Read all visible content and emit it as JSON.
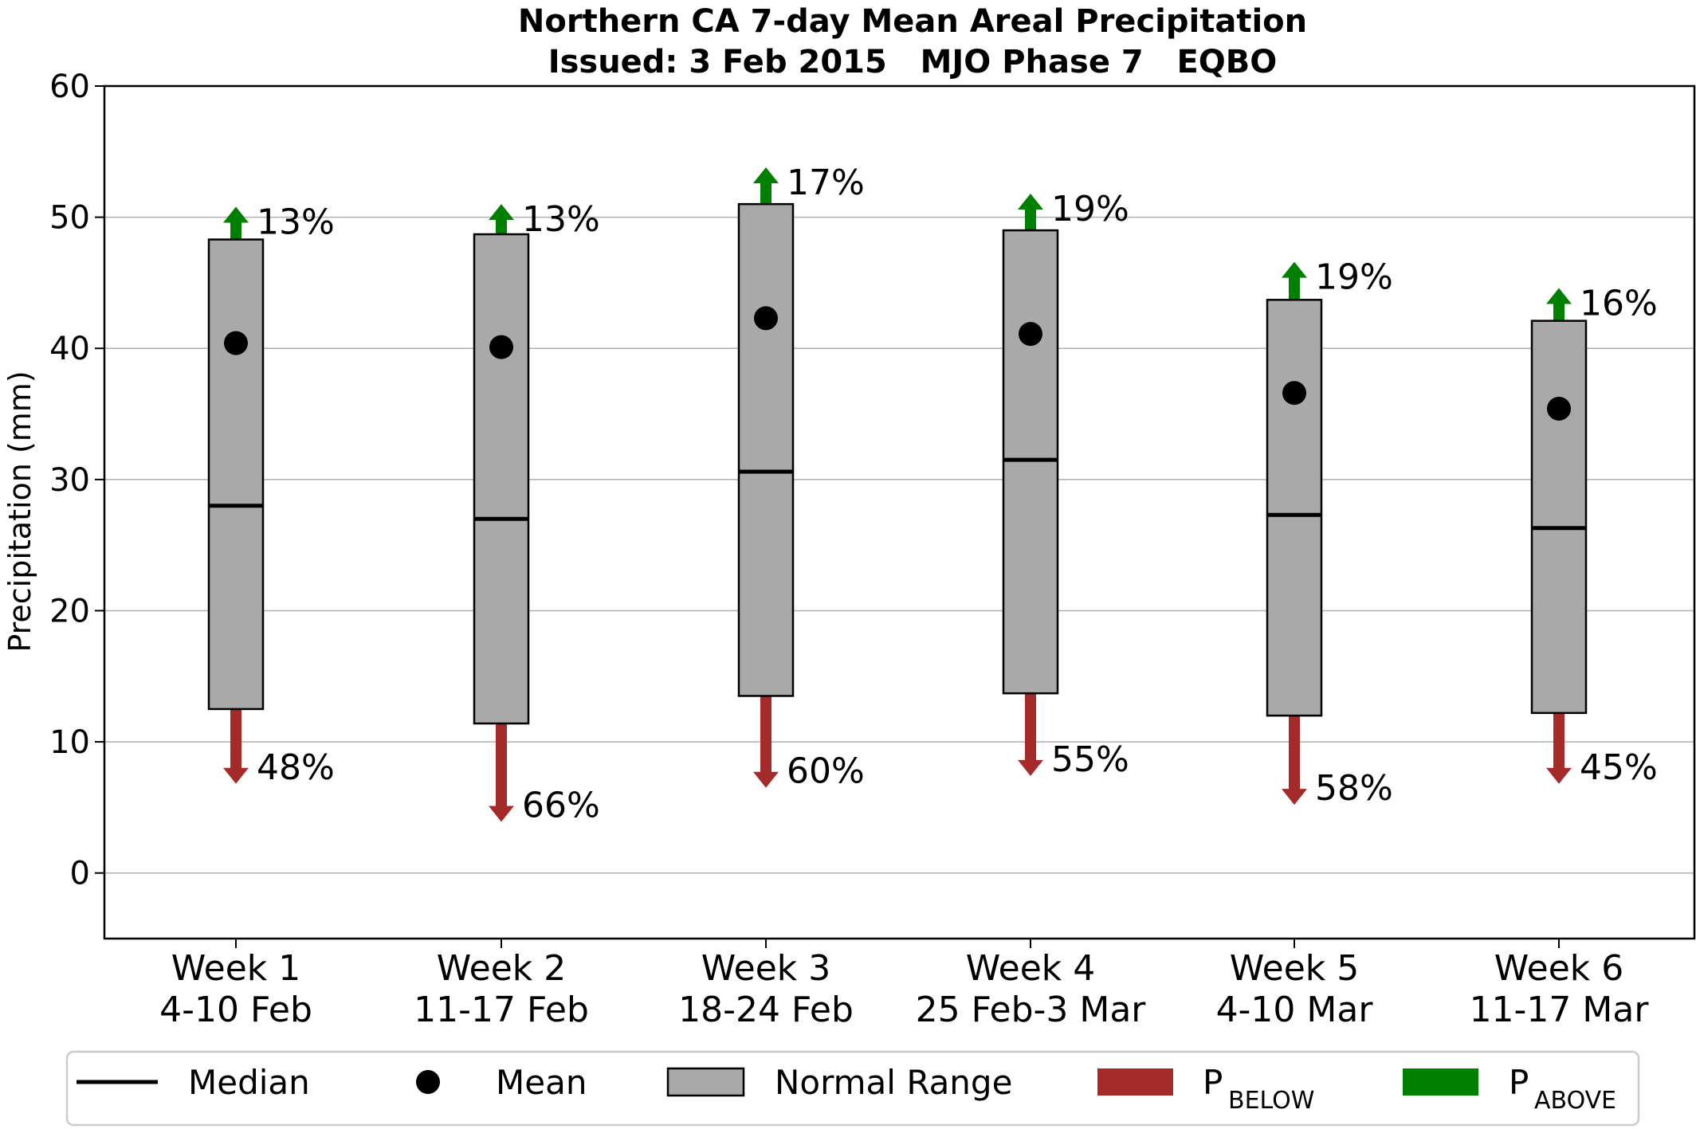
{
  "chart_data": {
    "type": "box-range",
    "title": "Northern CA 7-day Mean Areal Precipitation",
    "subtitle": "Issued: 3 Feb 2015   MJO Phase 7   EQBO",
    "ylabel": "Precipitation (mm)",
    "ylim": [
      -5,
      60
    ],
    "yticks": [
      0,
      10,
      20,
      30,
      40,
      50,
      60
    ],
    "grid": true,
    "categories": [
      {
        "line1": "Week 1",
        "line2": "4-10 Feb"
      },
      {
        "line1": "Week 2",
        "line2": "11-17 Feb"
      },
      {
        "line1": "Week 3",
        "line2": "18-24 Feb"
      },
      {
        "line1": "Week 4",
        "line2": "25 Feb-3 Mar"
      },
      {
        "line1": "Week 5",
        "line2": "4-10 Mar"
      },
      {
        "line1": "Week 6",
        "line2": "11-17 Mar"
      }
    ],
    "series": [
      {
        "name": "Normal Range",
        "low": [
          12.5,
          11.4,
          13.5,
          13.7,
          12.0,
          12.2
        ],
        "high": [
          48.3,
          48.7,
          51.0,
          49.0,
          43.7,
          42.1
        ]
      },
      {
        "name": "Median",
        "values": [
          28.0,
          27.0,
          30.6,
          31.5,
          27.3,
          26.3
        ]
      },
      {
        "name": "Mean",
        "values": [
          40.4,
          40.1,
          42.3,
          41.1,
          36.6,
          35.4
        ]
      },
      {
        "name": "P_BELOW",
        "arrow_end": [
          6.8,
          3.9,
          6.5,
          7.4,
          5.2,
          6.8
        ],
        "labels": [
          "48%",
          "66%",
          "60%",
          "55%",
          "58%",
          "45%"
        ]
      },
      {
        "name": "P_ABOVE",
        "arrow_end": [
          50.8,
          51.0,
          53.8,
          51.8,
          46.6,
          44.6
        ],
        "labels": [
          "13%",
          "13%",
          "17%",
          "19%",
          "19%",
          "16%"
        ]
      }
    ],
    "legend": {
      "placement": "bottom",
      "items": [
        {
          "symbol": "line",
          "label": "Median"
        },
        {
          "symbol": "dot",
          "label": "Mean"
        },
        {
          "symbol": "box",
          "label": "Normal Range"
        },
        {
          "symbol": "red-bar",
          "label": "P",
          "sub": "BELOW"
        },
        {
          "symbol": "green-bar",
          "label": "P",
          "sub": "ABOVE"
        }
      ]
    },
    "colors": {
      "box_fill": "#a9a9a9",
      "below": "#a52a2a",
      "above": "#008000",
      "grid": "#b0b0b0",
      "mean": "#000000"
    }
  }
}
